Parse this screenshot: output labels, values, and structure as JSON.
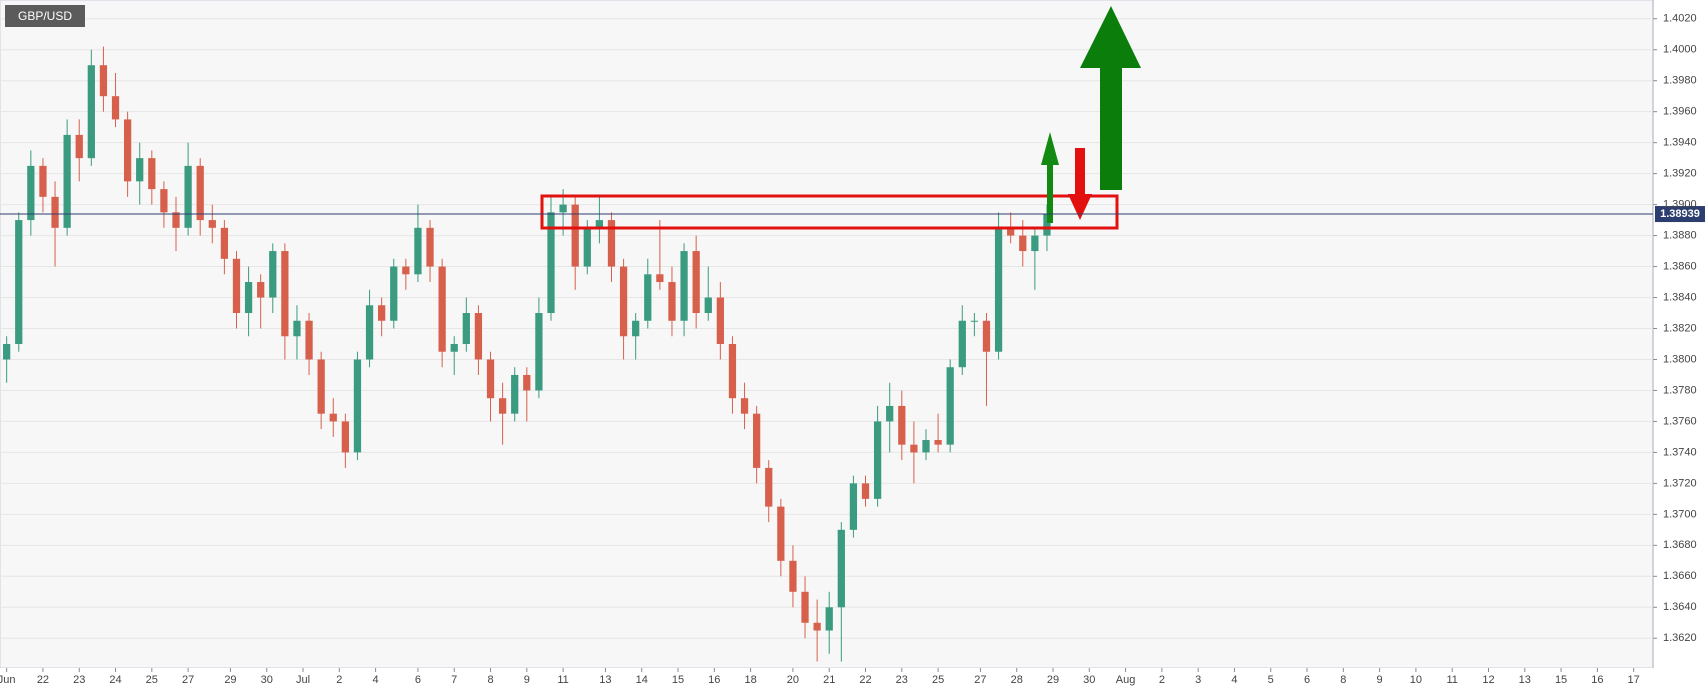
{
  "chart_data": {
    "type": "candlestick",
    "title": "GBP/USD",
    "up_color": "#3a9b80",
    "down_color": "#d7604d",
    "grid": true,
    "last_price": 1.38939,
    "last_price_color": "#2c3e6f",
    "xlim": [
      -0.55,
      136.1
    ],
    "ylim": [
      1.36008,
      1.40321
    ],
    "open": [
      1.38,
      1.381,
      1.389,
      1.3925,
      1.3905,
      1.3885,
      1.3945,
      1.393,
      1.399,
      1.397,
      1.3955,
      1.3915,
      1.393,
      1.391,
      1.3895,
      1.3885,
      1.3925,
      1.389,
      1.3885,
      1.3865,
      1.383,
      1.385,
      1.384,
      1.387,
      1.3815,
      1.3825,
      1.38,
      1.3765,
      1.376,
      1.374,
      1.38,
      1.3835,
      1.3825,
      1.386,
      1.3855,
      1.3885,
      1.386,
      1.3805,
      1.381,
      1.383,
      1.38,
      1.3775,
      1.3765,
      1.379,
      1.378,
      1.383,
      1.3895,
      1.39,
      1.386,
      1.3885,
      1.389,
      1.386,
      1.3815,
      1.3825,
      1.3855,
      1.385,
      1.3825,
      1.387,
      1.383,
      1.384,
      1.381,
      1.3775,
      1.3765,
      1.373,
      1.3705,
      1.367,
      1.365,
      1.363,
      1.3625,
      1.364,
      1.369,
      1.372,
      1.371,
      1.376,
      1.377,
      1.3745,
      1.374,
      1.3748,
      1.3745,
      1.3795,
      1.3825,
      1.3825,
      1.3805,
      1.3885,
      1.388,
      1.387,
      1.388
    ],
    "high": [
      1.3815,
      1.3895,
      1.3935,
      1.393,
      1.3915,
      1.3955,
      1.3955,
      1.4,
      1.4002,
      1.3985,
      1.396,
      1.394,
      1.3935,
      1.3915,
      1.3905,
      1.394,
      1.393,
      1.39,
      1.389,
      1.387,
      1.386,
      1.3855,
      1.3875,
      1.3875,
      1.3835,
      1.383,
      1.3805,
      1.3775,
      1.3765,
      1.3805,
      1.3845,
      1.384,
      1.3865,
      1.3865,
      1.39,
      1.389,
      1.3865,
      1.3815,
      1.384,
      1.3835,
      1.3805,
      1.3785,
      1.3795,
      1.3795,
      1.384,
      1.3905,
      1.391,
      1.3905,
      1.389,
      1.3905,
      1.3895,
      1.3865,
      1.383,
      1.3865,
      1.389,
      1.386,
      1.3875,
      1.388,
      1.386,
      1.385,
      1.3815,
      1.3785,
      1.377,
      1.3735,
      1.371,
      1.368,
      1.366,
      1.3645,
      1.365,
      1.3695,
      1.3725,
      1.3725,
      1.377,
      1.3785,
      1.378,
      1.376,
      1.3755,
      1.3765,
      1.38,
      1.3835,
      1.383,
      1.383,
      1.3895,
      1.3895,
      1.389,
      1.3885,
      1.39
    ],
    "low": [
      1.3785,
      1.3805,
      1.388,
      1.3895,
      1.386,
      1.388,
      1.3915,
      1.3925,
      1.396,
      1.395,
      1.3905,
      1.39,
      1.39,
      1.3885,
      1.387,
      1.388,
      1.388,
      1.3875,
      1.3855,
      1.382,
      1.3815,
      1.382,
      1.383,
      1.38,
      1.38,
      1.379,
      1.3755,
      1.375,
      1.373,
      1.3735,
      1.3795,
      1.3815,
      1.382,
      1.3845,
      1.385,
      1.385,
      1.3795,
      1.379,
      1.3805,
      1.379,
      1.376,
      1.3745,
      1.376,
      1.376,
      1.3775,
      1.3825,
      1.388,
      1.3845,
      1.3855,
      1.3875,
      1.385,
      1.38,
      1.38,
      1.382,
      1.3845,
      1.3815,
      1.3815,
      1.382,
      1.3825,
      1.38,
      1.3765,
      1.3755,
      1.372,
      1.3695,
      1.366,
      1.364,
      1.362,
      1.3605,
      1.361,
      1.3605,
      1.3685,
      1.3705,
      1.3705,
      1.374,
      1.3735,
      1.372,
      1.3735,
      1.374,
      1.374,
      1.379,
      1.3815,
      1.377,
      1.38,
      1.3875,
      1.386,
      1.3845,
      1.387
    ],
    "close": [
      1.381,
      1.389,
      1.3925,
      1.3905,
      1.3885,
      1.3945,
      1.393,
      1.399,
      1.397,
      1.3955,
      1.3915,
      1.393,
      1.391,
      1.3895,
      1.3885,
      1.3925,
      1.389,
      1.3885,
      1.3865,
      1.383,
      1.385,
      1.384,
      1.387,
      1.3815,
      1.3825,
      1.38,
      1.3765,
      1.376,
      1.374,
      1.38,
      1.3835,
      1.3825,
      1.386,
      1.3855,
      1.3885,
      1.386,
      1.3805,
      1.381,
      1.383,
      1.38,
      1.3775,
      1.3765,
      1.379,
      1.378,
      1.383,
      1.3895,
      1.39,
      1.386,
      1.3885,
      1.389,
      1.386,
      1.3815,
      1.3825,
      1.3855,
      1.385,
      1.3825,
      1.387,
      1.383,
      1.384,
      1.381,
      1.3775,
      1.3765,
      1.373,
      1.3705,
      1.367,
      1.365,
      1.363,
      1.3625,
      1.364,
      1.369,
      1.372,
      1.371,
      1.376,
      1.377,
      1.3745,
      1.374,
      1.3748,
      1.3745,
      1.3795,
      1.3825,
      1.3825,
      1.3805,
      1.3885,
      1.388,
      1.387,
      1.388,
      1.3894
    ],
    "yticks": [
      {
        "value": 1.362,
        "label": "1.3620"
      },
      {
        "value": 1.364,
        "label": "1.3640"
      },
      {
        "value": 1.366,
        "label": "1.3660"
      },
      {
        "value": 1.368,
        "label": "1.3680"
      },
      {
        "value": 1.37,
        "label": "1.3700"
      },
      {
        "value": 1.372,
        "label": "1.3720"
      },
      {
        "value": 1.374,
        "label": "1.3740"
      },
      {
        "value": 1.376,
        "label": "1.3760"
      },
      {
        "value": 1.378,
        "label": "1.3780"
      },
      {
        "value": 1.38,
        "label": "1.3800"
      },
      {
        "value": 1.382,
        "label": "1.3820"
      },
      {
        "value": 1.384,
        "label": "1.3840"
      },
      {
        "value": 1.386,
        "label": "1.3860"
      },
      {
        "value": 1.388,
        "label": "1.3880"
      },
      {
        "value": 1.39,
        "label": "1.3900"
      },
      {
        "value": 1.392,
        "label": "1.3920"
      },
      {
        "value": 1.394,
        "label": "1.3940"
      },
      {
        "value": 1.396,
        "label": "1.3960"
      },
      {
        "value": 1.398,
        "label": "1.3980"
      },
      {
        "value": 1.4,
        "label": "1.4000"
      },
      {
        "value": 1.402,
        "label": "1.4020"
      }
    ],
    "xticks": [
      {
        "value": 0,
        "label": "Jun"
      },
      {
        "value": 3,
        "label": "22"
      },
      {
        "value": 6,
        "label": "23"
      },
      {
        "value": 9,
        "label": "24"
      },
      {
        "value": 12,
        "label": "25"
      },
      {
        "value": 15,
        "label": "27"
      },
      {
        "value": 18.5,
        "label": "29"
      },
      {
        "value": 21.5,
        "label": "30"
      },
      {
        "value": 24.5,
        "label": "Jul"
      },
      {
        "value": 27.5,
        "label": "2"
      },
      {
        "value": 30.5,
        "label": "4"
      },
      {
        "value": 34,
        "label": "6"
      },
      {
        "value": 37,
        "label": "7"
      },
      {
        "value": 40,
        "label": "8"
      },
      {
        "value": 43,
        "label": "9"
      },
      {
        "value": 46,
        "label": "11"
      },
      {
        "value": 49.5,
        "label": "13"
      },
      {
        "value": 52.5,
        "label": "14"
      },
      {
        "value": 55.5,
        "label": "15"
      },
      {
        "value": 58.5,
        "label": "16"
      },
      {
        "value": 61.5,
        "label": "18"
      },
      {
        "value": 65,
        "label": "20"
      },
      {
        "value": 68,
        "label": "21"
      },
      {
        "value": 71,
        "label": "22"
      },
      {
        "value": 74,
        "label": "23"
      },
      {
        "value": 77,
        "label": "25"
      },
      {
        "value": 80.5,
        "label": "27"
      },
      {
        "value": 83.5,
        "label": "28"
      },
      {
        "value": 86.5,
        "label": "29"
      },
      {
        "value": 89.5,
        "label": "30"
      },
      {
        "value": 92.5,
        "label": "Aug"
      },
      {
        "value": 95.5,
        "label": "2"
      },
      {
        "value": 98.5,
        "label": "3"
      },
      {
        "value": 101.5,
        "label": "4"
      },
      {
        "value": 104.5,
        "label": "5"
      },
      {
        "value": 107.5,
        "label": "6"
      },
      {
        "value": 110.5,
        "label": "8"
      },
      {
        "value": 113.5,
        "label": "9"
      },
      {
        "value": 116.5,
        "label": "10"
      },
      {
        "value": 119.5,
        "label": "11"
      },
      {
        "value": 122.5,
        "label": "12"
      },
      {
        "value": 125.5,
        "label": "13"
      },
      {
        "value": 128.5,
        "label": "15"
      },
      {
        "value": 131.5,
        "label": "16"
      },
      {
        "value": 134.5,
        "label": "17"
      }
    ]
  }
}
